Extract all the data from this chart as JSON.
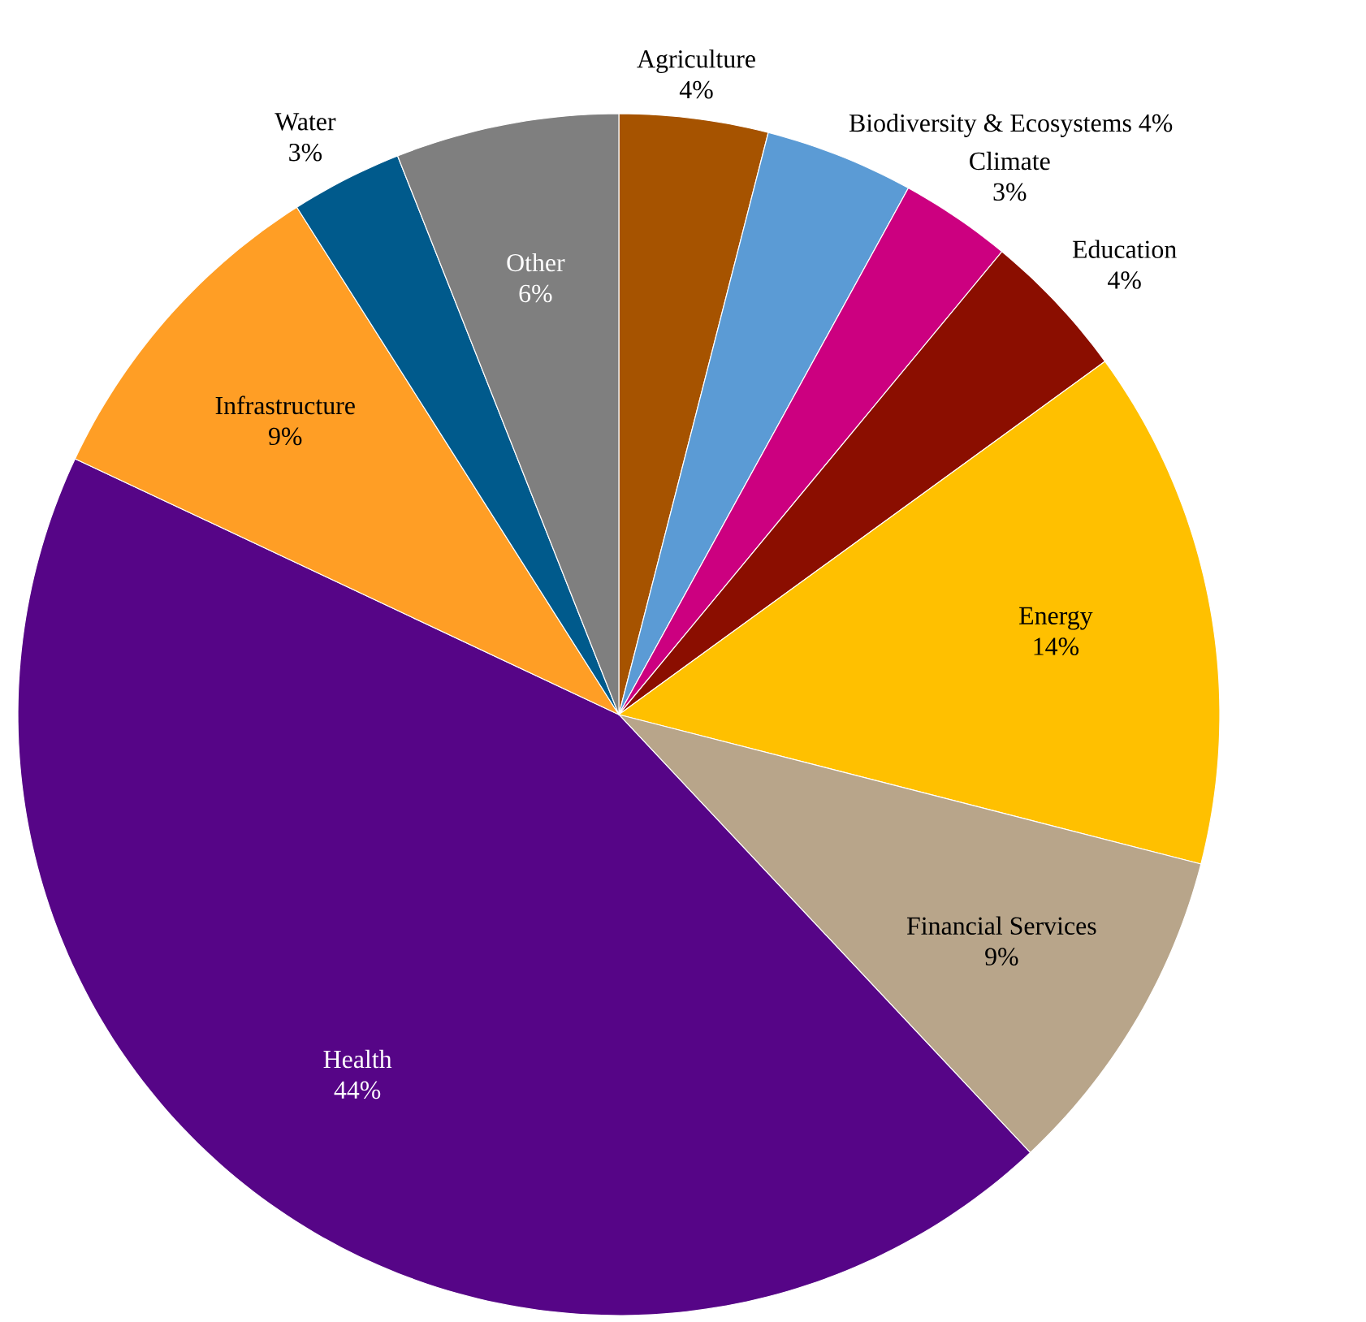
{
  "chart_data": {
    "type": "pie",
    "categories": [
      "Agriculture",
      "Biodiversity & Ecosystems",
      "Climate",
      "Education",
      "Energy",
      "Financial Services",
      "Health",
      "Infrastructure",
      "Water",
      "Other"
    ],
    "values": [
      4,
      4,
      3,
      4,
      14,
      9,
      44,
      9,
      3,
      6
    ],
    "value_labels": [
      "4%",
      "4%",
      "3%",
      "4%",
      "14%",
      "9%",
      "44%",
      "9%",
      "3%",
      "6%"
    ],
    "colors": [
      "#a65300",
      "#5b9bd5",
      "#cc0080",
      "#8b0e00",
      "#ffc000",
      "#b8a58a",
      "#560587",
      "#ff9e25",
      "#005a8c",
      "#7f7f7f"
    ]
  }
}
